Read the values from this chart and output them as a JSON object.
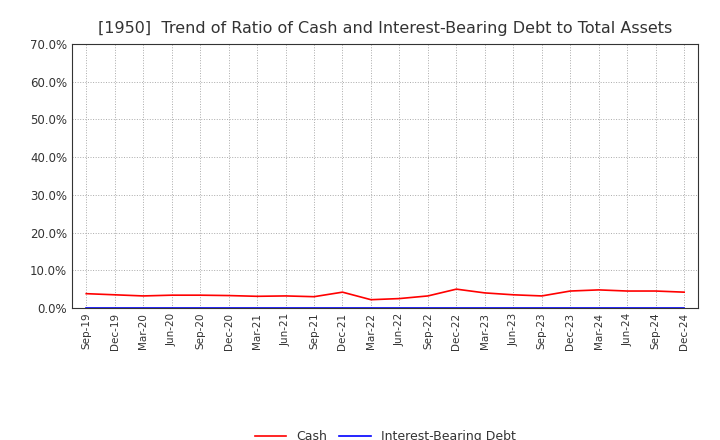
{
  "title": "[1950]  Trend of Ratio of Cash and Interest-Bearing Debt to Total Assets",
  "title_fontsize": 11.5,
  "background_color": "#ffffff",
  "grid_color": "#aaaaaa",
  "x_labels": [
    "Sep-19",
    "Dec-19",
    "Mar-20",
    "Jun-20",
    "Sep-20",
    "Dec-20",
    "Mar-21",
    "Jun-21",
    "Sep-21",
    "Dec-21",
    "Mar-22",
    "Jun-22",
    "Sep-22",
    "Dec-22",
    "Mar-23",
    "Jun-23",
    "Sep-23",
    "Dec-23",
    "Mar-24",
    "Jun-24",
    "Sep-24",
    "Dec-24"
  ],
  "cash": [
    3.8,
    3.5,
    3.2,
    3.4,
    3.4,
    3.3,
    3.1,
    3.2,
    3.0,
    4.2,
    2.2,
    2.5,
    3.2,
    5.0,
    4.0,
    3.5,
    3.2,
    4.5,
    4.8,
    4.5,
    4.5,
    4.2
  ],
  "interest_debt": [
    0.05,
    0.05,
    0.05,
    0.05,
    0.05,
    0.05,
    0.05,
    0.05,
    0.05,
    0.05,
    0.05,
    0.05,
    0.05,
    0.05,
    0.05,
    0.05,
    0.05,
    0.05,
    0.05,
    0.05,
    0.05,
    0.05
  ],
  "cash_color": "#ff0000",
  "interest_color": "#0000ff",
  "ylim": [
    0,
    70
  ],
  "yticks": [
    0,
    10,
    20,
    30,
    40,
    50,
    60,
    70
  ],
  "legend_labels": [
    "Cash",
    "Interest-Bearing Debt"
  ]
}
